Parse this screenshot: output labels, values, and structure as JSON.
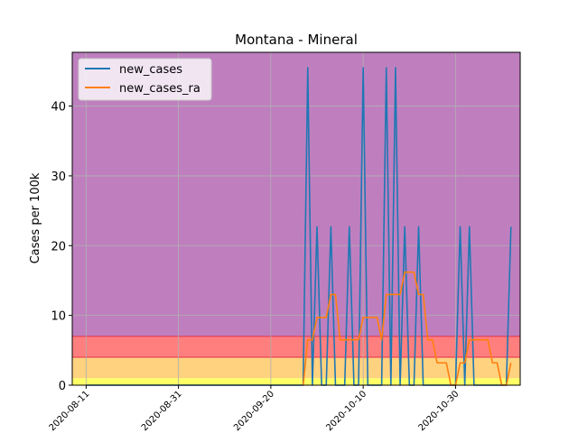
{
  "chart_data": {
    "type": "line",
    "title": "Montana - Mineral",
    "xlabel": "",
    "ylabel": "Cases per 100k",
    "x_ticks": [
      "2020-08-11",
      "2020-08-31",
      "2020-09-20",
      "2020-10-10",
      "2020-10-30"
    ],
    "y_ticks": [
      "0",
      "10",
      "20",
      "30",
      "40"
    ],
    "xlim": [
      "2020-08-08",
      "2020-11-13"
    ],
    "ylim": [
      0,
      47.7
    ],
    "grid": true,
    "legend_position": "top-left",
    "bands": [
      {
        "from": 0,
        "to": 1,
        "color": "#ffff66"
      },
      {
        "from": 1,
        "to": 4,
        "color": "#ffd280"
      },
      {
        "from": 4,
        "to": 7,
        "color": "#ff7f7f"
      },
      {
        "from": 7,
        "to": 47.7,
        "color": "#bf7fbf"
      }
    ],
    "band_edge_color": "#e0304a",
    "series": [
      {
        "name": "new_cases",
        "color": "#1f77b4",
        "points": [
          [
            "2020-08-11",
            0
          ],
          [
            "2020-08-17",
            0
          ],
          [
            "2020-09-27",
            0
          ],
          [
            "2020-09-28",
            45.5
          ],
          [
            "2020-09-29",
            0
          ],
          [
            "2020-09-30",
            22.7
          ],
          [
            "2020-10-01",
            0
          ],
          [
            "2020-10-02",
            0
          ],
          [
            "2020-10-03",
            22.7
          ],
          [
            "2020-10-04",
            0
          ],
          [
            "2020-10-05",
            0
          ],
          [
            "2020-10-06",
            0
          ],
          [
            "2020-10-07",
            22.7
          ],
          [
            "2020-10-08",
            0
          ],
          [
            "2020-10-09",
            0
          ],
          [
            "2020-10-10",
            45.5
          ],
          [
            "2020-10-11",
            0
          ],
          [
            "2020-10-12",
            0
          ],
          [
            "2020-10-13",
            0
          ],
          [
            "2020-10-14",
            0
          ],
          [
            "2020-10-15",
            45.5
          ],
          [
            "2020-10-16",
            0
          ],
          [
            "2020-10-17",
            45.5
          ],
          [
            "2020-10-18",
            0
          ],
          [
            "2020-10-19",
            22.7
          ],
          [
            "2020-10-20",
            0
          ],
          [
            "2020-10-21",
            0
          ],
          [
            "2020-10-22",
            22.7
          ],
          [
            "2020-10-23",
            0
          ],
          [
            "2020-10-24",
            0
          ],
          [
            "2020-10-25",
            0
          ],
          [
            "2020-10-26",
            0
          ],
          [
            "2020-10-27",
            0
          ],
          [
            "2020-10-28",
            0
          ],
          [
            "2020-10-29",
            0
          ],
          [
            "2020-10-30",
            0
          ],
          [
            "2020-10-31",
            22.7
          ],
          [
            "2020-11-01",
            0
          ],
          [
            "2020-11-02",
            22.7
          ],
          [
            "2020-11-03",
            0
          ],
          [
            "2020-11-04",
            0
          ],
          [
            "2020-11-05",
            0
          ],
          [
            "2020-11-06",
            0
          ],
          [
            "2020-11-07",
            0
          ],
          [
            "2020-11-08",
            0
          ],
          [
            "2020-11-09",
            0
          ],
          [
            "2020-11-10",
            0
          ],
          [
            "2020-11-11",
            22.7
          ]
        ]
      },
      {
        "name": "new_cases_ra",
        "color": "#ff7f0e",
        "points": [
          [
            "2020-09-27",
            0
          ],
          [
            "2020-09-28",
            6.5
          ],
          [
            "2020-09-29",
            6.5
          ],
          [
            "2020-09-30",
            9.7
          ],
          [
            "2020-10-01",
            9.7
          ],
          [
            "2020-10-02",
            9.7
          ],
          [
            "2020-10-03",
            13.0
          ],
          [
            "2020-10-04",
            13.0
          ],
          [
            "2020-10-05",
            6.5
          ],
          [
            "2020-10-06",
            6.5
          ],
          [
            "2020-10-07",
            6.5
          ],
          [
            "2020-10-08",
            6.5
          ],
          [
            "2020-10-09",
            6.5
          ],
          [
            "2020-10-10",
            9.7
          ],
          [
            "2020-10-11",
            9.7
          ],
          [
            "2020-10-12",
            9.7
          ],
          [
            "2020-10-13",
            9.7
          ],
          [
            "2020-10-14",
            6.5
          ],
          [
            "2020-10-15",
            13.0
          ],
          [
            "2020-10-16",
            13.0
          ],
          [
            "2020-10-17",
            13.0
          ],
          [
            "2020-10-18",
            13.0
          ],
          [
            "2020-10-19",
            16.2
          ],
          [
            "2020-10-20",
            16.2
          ],
          [
            "2020-10-21",
            16.2
          ],
          [
            "2020-10-22",
            13.0
          ],
          [
            "2020-10-23",
            13.0
          ],
          [
            "2020-10-24",
            6.5
          ],
          [
            "2020-10-25",
            6.5
          ],
          [
            "2020-10-26",
            3.2
          ],
          [
            "2020-10-27",
            3.2
          ],
          [
            "2020-10-28",
            3.2
          ],
          [
            "2020-10-29",
            0
          ],
          [
            "2020-10-30",
            0
          ],
          [
            "2020-10-31",
            3.2
          ],
          [
            "2020-11-01",
            3.2
          ],
          [
            "2020-11-02",
            6.5
          ],
          [
            "2020-11-03",
            6.5
          ],
          [
            "2020-11-04",
            6.5
          ],
          [
            "2020-11-05",
            6.5
          ],
          [
            "2020-11-06",
            6.5
          ],
          [
            "2020-11-07",
            3.2
          ],
          [
            "2020-11-08",
            3.2
          ],
          [
            "2020-11-09",
            0
          ],
          [
            "2020-11-10",
            0
          ],
          [
            "2020-11-11",
            3.2
          ]
        ]
      }
    ]
  }
}
